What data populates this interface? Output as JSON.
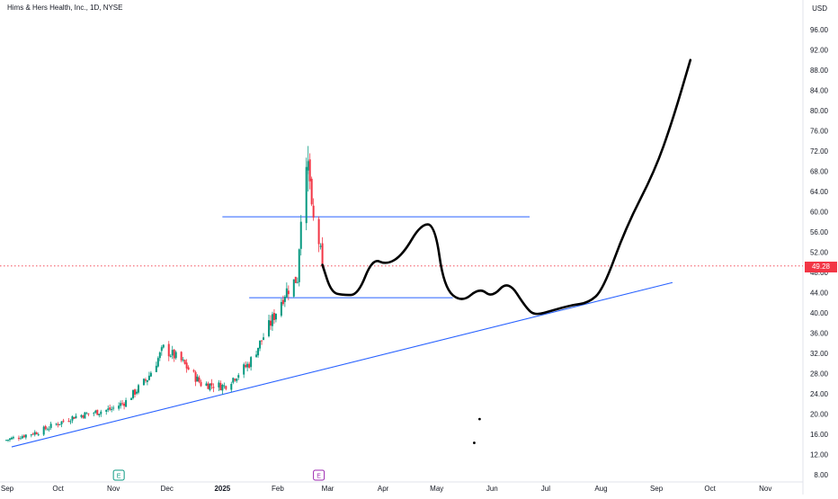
{
  "header": {
    "symbol": "Hims & Hers Health, Inc., 1D, NYSE",
    "currency": "USD"
  },
  "last_price": {
    "label": "49.28",
    "value": 49.28,
    "color": "#f23645"
  },
  "colors": {
    "up": "#089981",
    "down": "#f23645",
    "trendline": "#2962ff",
    "drawing": "#000000",
    "earnings_marker": "#089981",
    "dividend_marker": "#9c27b0"
  },
  "events": [
    {
      "type": "earnings",
      "label": "E",
      "date": "2024-11-04"
    },
    {
      "type": "earnings",
      "label": "E",
      "date": "2025-02-24"
    }
  ],
  "chart_data": {
    "type": "candlestick",
    "title": "Hims & Hers Health, Inc., 1D, NYSE",
    "x_ticks": [
      "Sep",
      "Oct",
      "Nov",
      "Dec",
      "2025",
      "Feb",
      "Mar",
      "Apr",
      "May",
      "Jun",
      "Jul",
      "Aug",
      "Sep",
      "Oct",
      "Nov"
    ],
    "y_ticks": [
      8,
      12,
      16,
      20,
      24,
      28,
      32,
      36,
      40,
      44,
      48,
      52,
      56,
      60,
      64,
      68,
      72,
      76,
      80,
      84,
      88,
      92,
      96
    ],
    "y_tick_labels": [
      "8.00",
      "12.00",
      "16.00",
      "20.00",
      "24.00",
      "28.00",
      "32.00",
      "36.00",
      "40.00",
      "44.00",
      "48.00",
      "52.00",
      "56.00",
      "60.00",
      "64.00",
      "68.00",
      "72.00",
      "76.00",
      "80.00",
      "84.00",
      "88.00",
      "92.00",
      "96.00"
    ],
    "ylim": [
      6,
      100
    ],
    "x_range": [
      "2024-09-01",
      "2025-11-18"
    ],
    "price_anchor": [
      {
        "date": "2024-09-01",
        "close": 14.8
      },
      {
        "date": "2024-09-20",
        "close": 16.5
      },
      {
        "date": "2024-10-10",
        "close": 19.5
      },
      {
        "date": "2024-10-31",
        "close": 21.0
      },
      {
        "date": "2024-11-08",
        "close": 22.5
      },
      {
        "date": "2024-11-20",
        "close": 27.0
      },
      {
        "date": "2024-11-29",
        "close": 33.0
      },
      {
        "date": "2024-12-09",
        "close": 30.5
      },
      {
        "date": "2024-12-20",
        "close": 26.0
      },
      {
        "date": "2025-01-02",
        "close": 25.5
      },
      {
        "date": "2025-01-16",
        "close": 30.0
      },
      {
        "date": "2025-01-28",
        "close": 38.0
      },
      {
        "date": "2025-02-05",
        "close": 44.0
      },
      {
        "date": "2025-02-12",
        "close": 47.0
      },
      {
        "date": "2025-02-14",
        "close": 60.0
      },
      {
        "date": "2025-02-18",
        "close": 69.0
      },
      {
        "date": "2025-02-19",
        "close": 66.0
      },
      {
        "date": "2025-02-20",
        "close": 59.5
      },
      {
        "date": "2025-02-24",
        "close": 54.0
      },
      {
        "date": "2025-02-26",
        "close": 49.28
      }
    ],
    "horizontal_lines": [
      {
        "value": 59.0,
        "from": "2025-01-01",
        "to": "2025-06-22"
      },
      {
        "value": 43.0,
        "from": "2025-01-16",
        "to": "2025-05-10"
      }
    ],
    "trendline": [
      {
        "date": "2024-09-05",
        "value": 13.5
      },
      {
        "date": "2025-09-10",
        "value": 46.0
      }
    ],
    "projection": [
      {
        "date": "2025-02-26",
        "value": 49.5
      },
      {
        "date": "2025-03-03",
        "value": 44.0
      },
      {
        "date": "2025-03-10",
        "value": 43.5
      },
      {
        "date": "2025-03-18",
        "value": 43.6
      },
      {
        "date": "2025-03-26",
        "value": 50.8
      },
      {
        "date": "2025-04-03",
        "value": 49.5
      },
      {
        "date": "2025-04-12",
        "value": 51.5
      },
      {
        "date": "2025-04-22",
        "value": 57.5
      },
      {
        "date": "2025-04-30",
        "value": 57.5
      },
      {
        "date": "2025-05-05",
        "value": 45.0
      },
      {
        "date": "2025-05-15",
        "value": 42.0
      },
      {
        "date": "2025-05-25",
        "value": 45.0
      },
      {
        "date": "2025-06-01",
        "value": 43.0
      },
      {
        "date": "2025-06-10",
        "value": 46.5
      },
      {
        "date": "2025-06-20",
        "value": 41.0
      },
      {
        "date": "2025-06-25",
        "value": 39.5
      },
      {
        "date": "2025-07-05",
        "value": 40.5
      },
      {
        "date": "2025-07-15",
        "value": 41.5
      },
      {
        "date": "2025-07-25",
        "value": 42.0
      },
      {
        "date": "2025-08-02",
        "value": 44.5
      },
      {
        "date": "2025-08-15",
        "value": 57.0
      },
      {
        "date": "2025-08-31",
        "value": 68.0
      },
      {
        "date": "2025-09-10",
        "value": 78.0
      },
      {
        "date": "2025-09-20",
        "value": 90.0
      }
    ],
    "dots": [
      {
        "date": "2025-05-25",
        "value": 19.0
      },
      {
        "date": "2025-05-22",
        "value": 14.3
      }
    ]
  }
}
